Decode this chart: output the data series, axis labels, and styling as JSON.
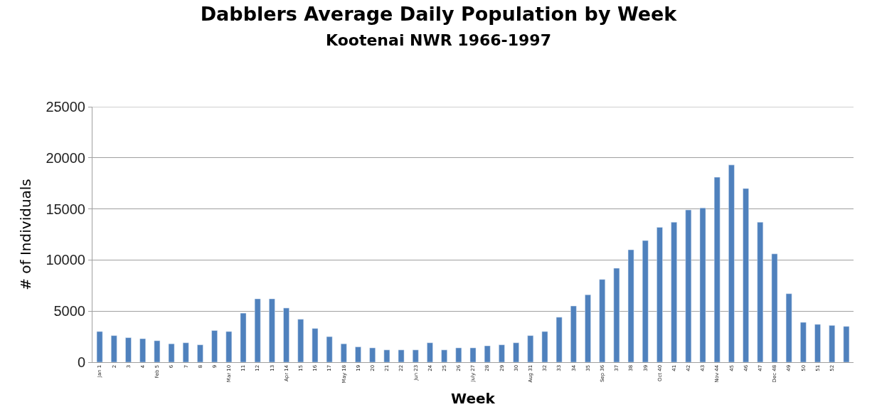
{
  "chart_data": {
    "type": "bar",
    "title": "Dabblers Average Daily Population by Week",
    "subtitle": "Kootenai NWR 1966-1997",
    "xlabel": "Week",
    "ylabel": "# of Individuals",
    "categories": [
      "Jan 1",
      "2",
      "3",
      "4",
      "Feb 5",
      "6",
      "7",
      "8",
      "9",
      "Mar 10",
      "11",
      "12",
      "13",
      "Apr 14",
      "15",
      "16",
      "17",
      "May 18",
      "19",
      "20",
      "21",
      "22",
      "Jun 23",
      "24",
      "25",
      "26",
      "July 27",
      "28",
      "29",
      "30",
      "Aug 31",
      "32",
      "33",
      "34",
      "35",
      "Sep 36",
      "37",
      "38",
      "39",
      "Oct 40",
      "41",
      "42",
      "43",
      "Nov 44",
      "45",
      "46",
      "47",
      "Dec 48",
      "49",
      "50",
      "51",
      "52",
      null
    ],
    "values": [
      3000,
      2600,
      2400,
      2300,
      2100,
      1800,
      1900,
      1700,
      3100,
      3000,
      4800,
      6200,
      6200,
      5300,
      4200,
      3300,
      2500,
      1800,
      1500,
      1400,
      1200,
      1200,
      1200,
      1900,
      1200,
      1400,
      1400,
      1600,
      1700,
      1900,
      2600,
      3000,
      4400,
      5500,
      6600,
      8100,
      9200,
      11000,
      11900,
      13200,
      13700,
      14900,
      15100,
      18100,
      19300,
      17000,
      13700,
      10600,
      6700,
      3900,
      3700,
      3600,
      3500
    ],
    "color": "#4f81bd",
    "ylim": [
      0,
      25000
    ],
    "yticks": [
      0,
      5000,
      10000,
      15000,
      20000,
      25000
    ],
    "grid": "y"
  }
}
